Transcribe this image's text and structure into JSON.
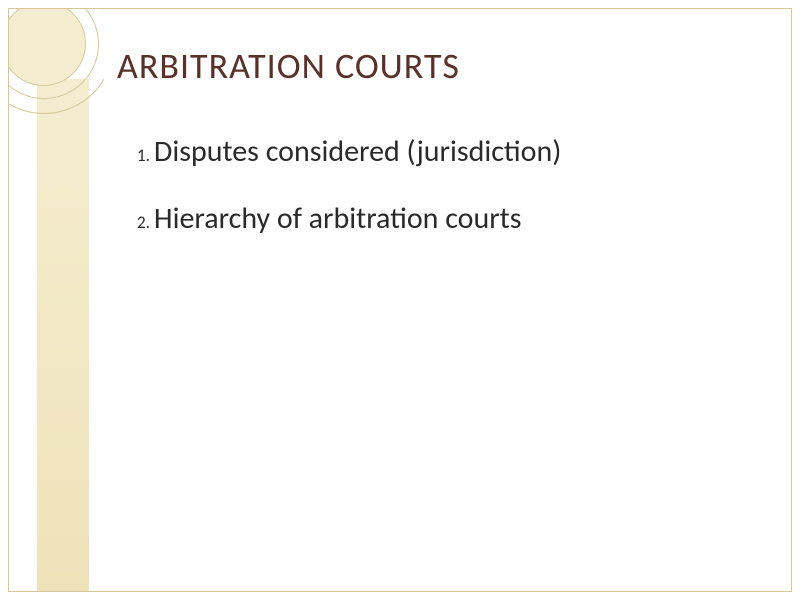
{
  "title": "ARBITRATION COURTS",
  "items": [
    {
      "number": "1.",
      "text": "Disputes considered (jurisdiction)"
    },
    {
      "number": "2.",
      "text": "Hierarchy of arbitration courts"
    }
  ],
  "colors": {
    "title_color": "#593128",
    "text_color": "#2a2a2a",
    "border_color": "#d4c89a",
    "decoration_bg": "#f5edd0",
    "background": "#ffffff"
  },
  "fonts": {
    "title_size": 36,
    "body_size": 30,
    "number_size": 17
  }
}
